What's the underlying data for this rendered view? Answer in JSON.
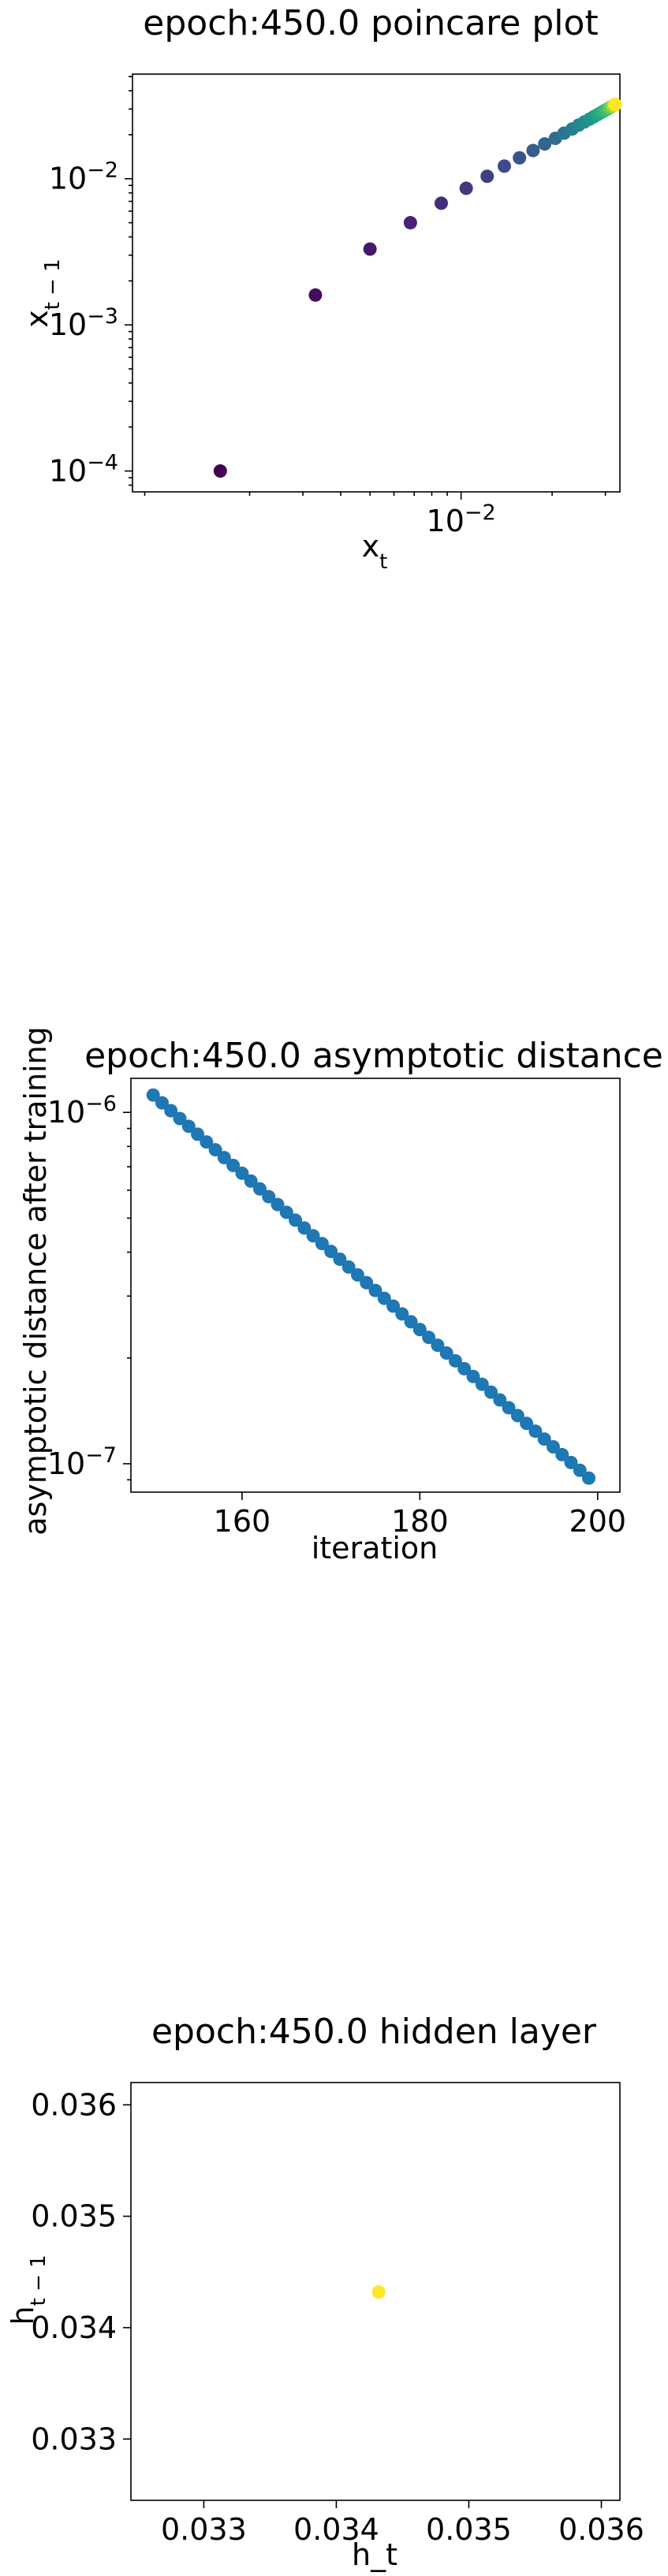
{
  "chart_data": [
    {
      "type": "scatter",
      "title": "epoch:450.0 poincare plot",
      "xlabel": "x_t",
      "ylabel": "x_{t-1}",
      "xscale": "log",
      "yscale": "log",
      "xlim": [
        0.00082,
        0.0335
      ],
      "ylim": [
        7.2e-05,
        0.052
      ],
      "xtick_labels": [
        {
          "value": 0.01,
          "base": "10",
          "exp": "−2"
        }
      ],
      "ytick_labels": [
        {
          "value": 0.0001,
          "base": "10",
          "exp": "−4"
        },
        {
          "value": 0.001,
          "base": "10",
          "exp": "−3"
        },
        {
          "value": 0.01,
          "base": "10",
          "exp": "−2"
        }
      ],
      "colormap": "viridis",
      "marker_color_start": "#440154",
      "marker_color_end": "#fde725",
      "points": [
        {
          "x": 0.0016,
          "y": 0.0001
        },
        {
          "x": 0.0033,
          "y": 0.0016
        },
        {
          "x": 0.005,
          "y": 0.0033
        },
        {
          "x": 0.0068,
          "y": 0.005
        },
        {
          "x": 0.0086,
          "y": 0.0068
        },
        {
          "x": 0.0104,
          "y": 0.0086
        },
        {
          "x": 0.0122,
          "y": 0.0104
        },
        {
          "x": 0.0139,
          "y": 0.0122
        },
        {
          "x": 0.0156,
          "y": 0.0139
        },
        {
          "x": 0.0173,
          "y": 0.0156
        },
        {
          "x": 0.0189,
          "y": 0.0173
        },
        {
          "x": 0.0205,
          "y": 0.0189
        },
        {
          "x": 0.0219,
          "y": 0.0205
        },
        {
          "x": 0.0233,
          "y": 0.0219
        },
        {
          "x": 0.0245,
          "y": 0.0233
        },
        {
          "x": 0.0256,
          "y": 0.0245
        },
        {
          "x": 0.0266,
          "y": 0.0256
        },
        {
          "x": 0.0275,
          "y": 0.0266
        },
        {
          "x": 0.0283,
          "y": 0.0275
        },
        {
          "x": 0.029,
          "y": 0.0283
        },
        {
          "x": 0.0296,
          "y": 0.029
        },
        {
          "x": 0.0301,
          "y": 0.0296
        },
        {
          "x": 0.0306,
          "y": 0.0301
        },
        {
          "x": 0.031,
          "y": 0.0306
        },
        {
          "x": 0.0313,
          "y": 0.031
        },
        {
          "x": 0.0316,
          "y": 0.0313
        },
        {
          "x": 0.0318,
          "y": 0.0316
        },
        {
          "x": 0.032,
          "y": 0.0318
        },
        {
          "x": 0.0321,
          "y": 0.032
        },
        {
          "x": 0.0322,
          "y": 0.0321
        },
        {
          "x": 0.0323,
          "y": 0.0322
        },
        {
          "x": 0.0323,
          "y": 0.0323
        }
      ]
    },
    {
      "type": "scatter",
      "title": "epoch:450.0 asymptotic distance",
      "xlabel": "iteration",
      "ylabel": "asymptotic distance after training",
      "yscale": "log",
      "xlim": [
        147.5,
        202.5
      ],
      "ylim": [
        8.3e-08,
        1.25e-06
      ],
      "xtick_labels": [
        {
          "value": 160,
          "label": "160"
        },
        {
          "value": 180,
          "label": "180"
        },
        {
          "value": 200,
          "label": "200"
        }
      ],
      "ytick_labels": [
        {
          "value": 1e-07,
          "base": "10",
          "exp": "−7"
        },
        {
          "value": 1e-06,
          "base": "10",
          "exp": "−6"
        }
      ],
      "marker_color": "#1f77b4",
      "x_start": 150,
      "x_end": 199,
      "y_start": 1.12e-06,
      "y_end": 9.1e-08
    },
    {
      "type": "scatter",
      "title": "epoch:450.0 hidden layer",
      "xlabel": "h_t",
      "ylabel": "h_{t-1}",
      "xlim": [
        0.03245,
        0.03614
      ],
      "ylim": [
        0.03245,
        0.0362
      ],
      "xtick_labels": [
        {
          "value": 0.033,
          "label": "0.033"
        },
        {
          "value": 0.034,
          "label": "0.034"
        },
        {
          "value": 0.035,
          "label": "0.035"
        },
        {
          "value": 0.036,
          "label": "0.036"
        }
      ],
      "ytick_labels": [
        {
          "value": 0.033,
          "label": "0.033"
        },
        {
          "value": 0.034,
          "label": "0.034"
        },
        {
          "value": 0.035,
          "label": "0.035"
        },
        {
          "value": 0.036,
          "label": "0.036"
        }
      ],
      "marker_color": "#fde725",
      "points": [
        {
          "x": 0.03432,
          "y": 0.03432
        }
      ]
    }
  ]
}
